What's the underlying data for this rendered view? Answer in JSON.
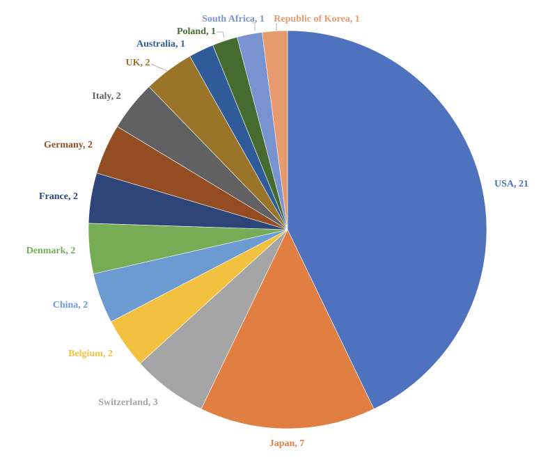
{
  "chart_data": {
    "type": "pie",
    "title": "",
    "label_format": "{category}, {value}",
    "slices": [
      {
        "category": "USA",
        "value": 21,
        "color": "#4f72be"
      },
      {
        "category": "Japan",
        "value": 7,
        "color": "#e07f41"
      },
      {
        "category": "Switzerland",
        "value": 3,
        "color": "#a5a5a5"
      },
      {
        "category": "Belgium",
        "value": 2,
        "color": "#f3c140"
      },
      {
        "category": "China",
        "value": 2,
        "color": "#6c9bd2"
      },
      {
        "category": "Denmark",
        "value": 2,
        "color": "#77ac57"
      },
      {
        "category": "France",
        "value": 2,
        "color": "#2d4578"
      },
      {
        "category": "Germany",
        "value": 2,
        "color": "#944c22"
      },
      {
        "category": "Italy",
        "value": 2,
        "color": "#616161"
      },
      {
        "category": "UK",
        "value": 2,
        "color": "#9a7428"
      },
      {
        "category": "Australia",
        "value": 1,
        "color": "#2f5c98"
      },
      {
        "category": "Poland",
        "value": 1,
        "color": "#456b30"
      },
      {
        "category": "South Africa",
        "value": 1,
        "color": "#7893d0"
      },
      {
        "category": "Republic of Korea",
        "value": 1,
        "color": "#e59b6e"
      }
    ],
    "start_angle": "12 o'clock",
    "direction": "clockwise",
    "legend": "none",
    "data_labels": "outside"
  }
}
